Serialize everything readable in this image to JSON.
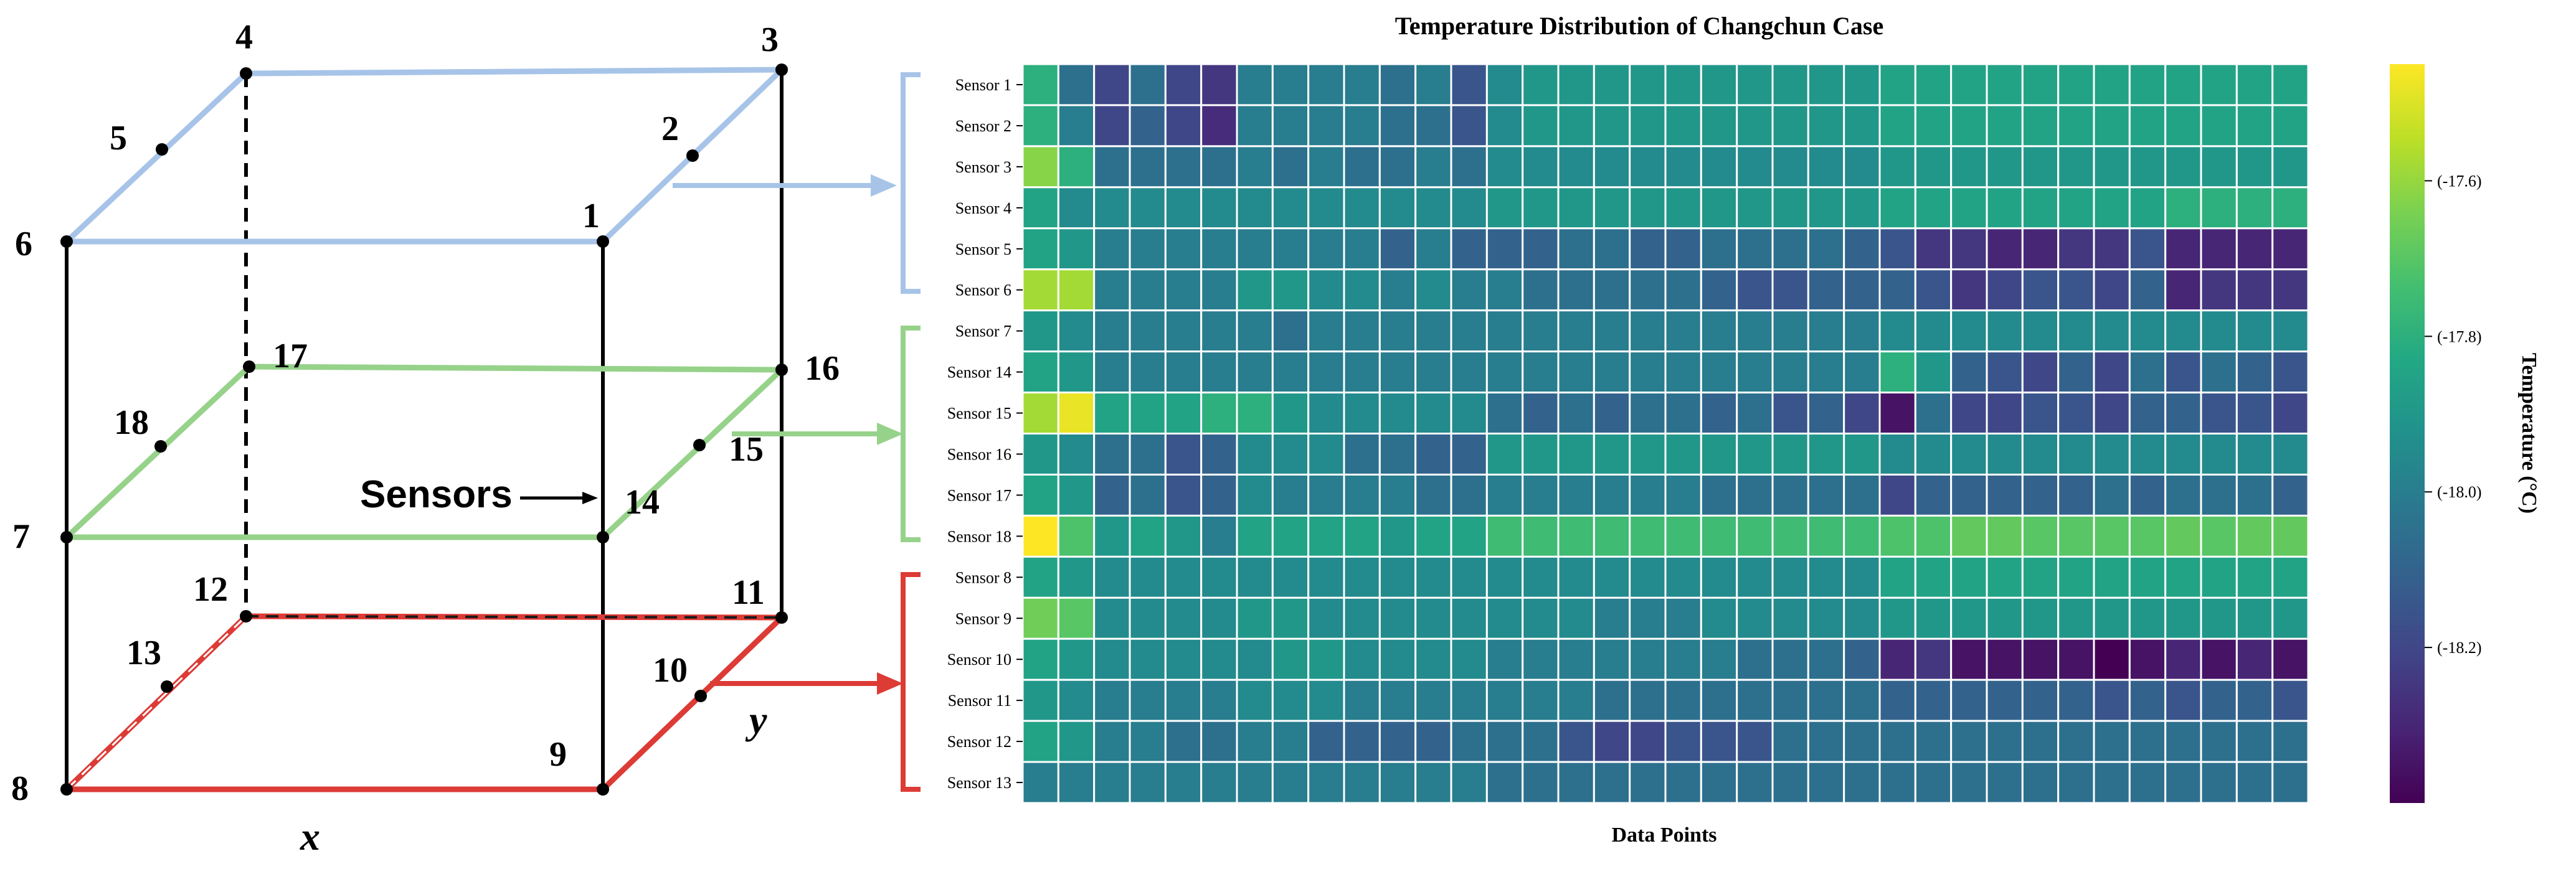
{
  "diagram": {
    "nodes": [
      "1",
      "2",
      "3",
      "4",
      "5",
      "6",
      "7",
      "8",
      "9",
      "10",
      "11",
      "12",
      "13",
      "14",
      "15",
      "16",
      "17",
      "18"
    ],
    "sensors_label": "Sensors",
    "x_axis": "x",
    "y_axis": "y",
    "colors": {
      "top": "#a7c4e8",
      "middle": "#96d28a",
      "bottom": "#dd3b36",
      "frame": "#000000"
    }
  },
  "chart_data": {
    "type": "heatmap",
    "title": "Temperature Distribution of Changchun Case",
    "xlabel": "Data Points",
    "ylabel": "",
    "colorbar_label": "Temperature (°C)",
    "colorbar_ticks": [
      {
        "value": -17.6,
        "label": "(-17.6)"
      },
      {
        "value": -17.8,
        "label": "(-17.8)"
      },
      {
        "value": -18.0,
        "label": "(-18.0)"
      },
      {
        "value": -18.2,
        "label": "(-18.2)"
      }
    ],
    "vmin": -18.4,
    "vmax": -17.45,
    "colormap": "viridis",
    "rows": [
      "Sensor 1",
      "Sensor 2",
      "Sensor 3",
      "Sensor 4",
      "Sensor 5",
      "Sensor 6",
      "Sensor 7",
      "Sensor 14",
      "Sensor 15",
      "Sensor 16",
      "Sensor 17",
      "Sensor 18",
      "Sensor 8",
      "Sensor 9",
      "Sensor 10",
      "Sensor 11",
      "Sensor 12",
      "Sensor 13"
    ],
    "groups": [
      {
        "name": "top",
        "color": "#a7c4e8",
        "rows": [
          "Sensor 1",
          "Sensor 2",
          "Sensor 3",
          "Sensor 4",
          "Sensor 5",
          "Sensor 6"
        ]
      },
      {
        "name": "middle",
        "color": "#96d28a",
        "rows": [
          "Sensor 7",
          "Sensor 14",
          "Sensor 15",
          "Sensor 16",
          "Sensor 17",
          "Sensor 18"
        ]
      },
      {
        "name": "bottom",
        "color": "#dd3b36",
        "rows": [
          "Sensor 8",
          "Sensor 9",
          "Sensor 10",
          "Sensor 11",
          "Sensor 12",
          "Sensor 13"
        ]
      }
    ],
    "n_columns": 36,
    "values": [
      [
        -17.8,
        -18.05,
        -18.2,
        -18.05,
        -18.2,
        -18.25,
        -18.0,
        -18.0,
        -18.0,
        -18.0,
        -18.05,
        -18.0,
        -18.15,
        -17.95,
        -17.9,
        -17.9,
        -17.9,
        -17.9,
        -17.9,
        -17.9,
        -17.9,
        -17.9,
        -17.9,
        -17.9,
        -17.85,
        -17.85,
        -17.85,
        -17.85,
        -17.85,
        -17.85,
        -17.85,
        -17.85,
        -17.85,
        -17.85,
        -17.85,
        -17.85
      ],
      [
        -17.8,
        -18.0,
        -18.2,
        -18.1,
        -18.2,
        -18.28,
        -18.0,
        -18.0,
        -18.0,
        -18.0,
        -18.05,
        -18.05,
        -18.15,
        -17.95,
        -17.9,
        -17.9,
        -17.9,
        -17.9,
        -17.9,
        -17.9,
        -17.9,
        -17.9,
        -17.9,
        -17.9,
        -17.85,
        -17.85,
        -17.85,
        -17.85,
        -17.85,
        -17.85,
        -17.85,
        -17.85,
        -17.85,
        -17.85,
        -17.85,
        -17.85
      ],
      [
        -17.62,
        -17.8,
        -18.05,
        -18.05,
        -18.05,
        -18.05,
        -18.0,
        -18.05,
        -18.0,
        -18.05,
        -18.05,
        -18.0,
        -18.05,
        -17.95,
        -17.95,
        -17.95,
        -17.95,
        -17.95,
        -17.95,
        -17.95,
        -17.95,
        -17.95,
        -17.95,
        -17.95,
        -17.9,
        -17.9,
        -17.9,
        -17.9,
        -17.9,
        -17.9,
        -17.9,
        -17.9,
        -17.9,
        -17.9,
        -17.9,
        -17.9
      ],
      [
        -17.85,
        -17.95,
        -17.95,
        -17.95,
        -17.95,
        -17.95,
        -17.95,
        -17.95,
        -17.95,
        -17.95,
        -17.95,
        -17.95,
        -17.95,
        -17.9,
        -17.9,
        -17.9,
        -17.9,
        -17.9,
        -17.9,
        -17.9,
        -17.9,
        -17.9,
        -17.9,
        -17.9,
        -17.85,
        -17.85,
        -17.85,
        -17.85,
        -17.85,
        -17.85,
        -17.85,
        -17.85,
        -17.8,
        -17.8,
        -17.8,
        -17.8
      ],
      [
        -17.85,
        -17.9,
        -18.0,
        -18.0,
        -18.0,
        -18.0,
        -18.0,
        -18.0,
        -18.0,
        -18.0,
        -18.1,
        -18.0,
        -18.1,
        -18.1,
        -18.1,
        -18.05,
        -18.05,
        -18.1,
        -18.1,
        -18.05,
        -18.05,
        -18.05,
        -18.05,
        -18.1,
        -18.15,
        -18.25,
        -18.25,
        -18.3,
        -18.3,
        -18.25,
        -18.25,
        -18.15,
        -18.3,
        -18.3,
        -18.3,
        -18.3
      ],
      [
        -17.58,
        -17.58,
        -18.0,
        -18.0,
        -18.0,
        -18.0,
        -17.9,
        -17.9,
        -17.95,
        -17.95,
        -18.0,
        -17.95,
        -18.0,
        -18.0,
        -18.05,
        -18.05,
        -18.05,
        -18.05,
        -18.05,
        -18.1,
        -18.15,
        -18.15,
        -18.1,
        -18.1,
        -18.1,
        -18.15,
        -18.25,
        -18.2,
        -18.15,
        -18.15,
        -18.2,
        -18.1,
        -18.3,
        -18.25,
        -18.25,
        -18.25
      ],
      [
        -17.9,
        -17.95,
        -18.0,
        -18.0,
        -18.0,
        -18.0,
        -18.0,
        -18.05,
        -18.0,
        -18.0,
        -18.0,
        -18.0,
        -18.0,
        -18.0,
        -18.0,
        -18.0,
        -18.0,
        -18.0,
        -18.0,
        -18.0,
        -18.0,
        -18.0,
        -18.0,
        -18.0,
        -17.95,
        -17.95,
        -17.95,
        -17.95,
        -17.95,
        -17.95,
        -17.95,
        -17.95,
        -17.95,
        -17.95,
        -17.95,
        -17.95
      ],
      [
        -17.85,
        -17.9,
        -18.0,
        -18.0,
        -18.0,
        -18.0,
        -18.0,
        -18.0,
        -18.0,
        -18.0,
        -18.0,
        -18.0,
        -18.0,
        -18.0,
        -18.0,
        -18.0,
        -18.0,
        -18.0,
        -18.0,
        -18.0,
        -18.0,
        -18.0,
        -18.0,
        -18.0,
        -17.8,
        -17.9,
        -18.1,
        -18.15,
        -18.2,
        -18.1,
        -18.2,
        -18.05,
        -18.15,
        -18.05,
        -18.1,
        -18.15
      ],
      [
        -17.58,
        -17.48,
        -17.85,
        -17.85,
        -17.85,
        -17.8,
        -17.8,
        -17.9,
        -17.95,
        -17.95,
        -17.95,
        -17.95,
        -17.95,
        -18.05,
        -18.1,
        -18.05,
        -18.1,
        -18.05,
        -18.05,
        -18.1,
        -18.05,
        -18.15,
        -18.1,
        -18.2,
        -18.35,
        -18.05,
        -18.2,
        -18.2,
        -18.15,
        -18.15,
        -18.2,
        -18.1,
        -18.1,
        -18.15,
        -18.15,
        -18.2
      ],
      [
        -17.9,
        -17.95,
        -18.05,
        -18.05,
        -18.15,
        -18.1,
        -17.95,
        -17.95,
        -17.95,
        -18.05,
        -18.05,
        -18.1,
        -18.1,
        -17.9,
        -17.9,
        -17.9,
        -17.9,
        -17.9,
        -17.9,
        -17.9,
        -17.9,
        -17.9,
        -17.9,
        -17.9,
        -17.95,
        -17.95,
        -17.95,
        -17.95,
        -17.95,
        -17.95,
        -17.95,
        -17.95,
        -17.95,
        -17.95,
        -17.95,
        -17.95
      ],
      [
        -17.85,
        -17.9,
        -18.1,
        -18.05,
        -18.15,
        -18.1,
        -17.95,
        -18.0,
        -18.0,
        -18.0,
        -18.0,
        -18.05,
        -18.05,
        -18.0,
        -18.0,
        -18.0,
        -18.0,
        -18.0,
        -18.0,
        -18.05,
        -18.05,
        -18.05,
        -18.05,
        -18.05,
        -18.2,
        -18.1,
        -18.1,
        -18.1,
        -18.1,
        -18.1,
        -18.05,
        -18.1,
        -18.05,
        -18.05,
        -18.05,
        -18.1
      ],
      [
        -17.45,
        -17.72,
        -17.9,
        -17.85,
        -17.9,
        -18.0,
        -17.85,
        -17.85,
        -17.85,
        -17.85,
        -17.9,
        -17.85,
        -17.85,
        -17.75,
        -17.75,
        -17.75,
        -17.75,
        -17.75,
        -17.75,
        -17.75,
        -17.75,
        -17.75,
        -17.75,
        -17.75,
        -17.72,
        -17.72,
        -17.68,
        -17.68,
        -17.7,
        -17.7,
        -17.7,
        -17.7,
        -17.68,
        -17.7,
        -17.68,
        -17.68
      ],
      [
        -17.85,
        -17.9,
        -17.95,
        -17.95,
        -17.95,
        -17.95,
        -17.95,
        -17.95,
        -17.95,
        -17.95,
        -17.95,
        -17.95,
        -17.95,
        -17.95,
        -17.95,
        -17.95,
        -17.95,
        -17.95,
        -17.95,
        -17.95,
        -17.95,
        -17.95,
        -17.95,
        -17.95,
        -17.85,
        -17.85,
        -17.85,
        -17.85,
        -17.85,
        -17.85,
        -17.85,
        -17.85,
        -17.85,
        -17.85,
        -17.85,
        -17.85
      ],
      [
        -17.66,
        -17.7,
        -17.95,
        -17.95,
        -17.95,
        -17.95,
        -17.9,
        -17.9,
        -17.95,
        -17.95,
        -17.95,
        -17.95,
        -17.95,
        -17.95,
        -17.95,
        -17.95,
        -18.0,
        -18.0,
        -18.0,
        -17.95,
        -17.95,
        -17.95,
        -17.95,
        -17.95,
        -17.9,
        -17.9,
        -17.9,
        -17.9,
        -17.9,
        -17.9,
        -17.9,
        -17.9,
        -17.9,
        -17.9,
        -17.9,
        -17.9
      ],
      [
        -17.85,
        -17.9,
        -17.95,
        -17.95,
        -17.95,
        -17.95,
        -17.95,
        -17.9,
        -17.9,
        -17.95,
        -17.95,
        -17.95,
        -17.95,
        -18.0,
        -18.0,
        -18.0,
        -18.0,
        -18.0,
        -18.0,
        -18.0,
        -18.05,
        -18.05,
        -18.05,
        -18.1,
        -18.3,
        -18.25,
        -18.35,
        -18.35,
        -18.35,
        -18.35,
        -18.4,
        -18.35,
        -18.3,
        -18.35,
        -18.3,
        -18.35
      ],
      [
        -17.9,
        -17.95,
        -18.0,
        -18.0,
        -18.0,
        -18.0,
        -17.95,
        -17.95,
        -17.95,
        -18.0,
        -18.0,
        -18.0,
        -18.0,
        -18.0,
        -18.0,
        -18.0,
        -18.05,
        -18.05,
        -18.05,
        -18.05,
        -18.05,
        -18.05,
        -18.05,
        -18.05,
        -18.1,
        -18.1,
        -18.1,
        -18.1,
        -18.1,
        -18.1,
        -18.15,
        -18.1,
        -18.15,
        -18.1,
        -18.1,
        -18.15
      ],
      [
        -17.85,
        -17.9,
        -18.0,
        -18.0,
        -18.05,
        -18.05,
        -18.0,
        -18.0,
        -18.1,
        -18.1,
        -18.1,
        -18.1,
        -18.05,
        -18.05,
        -18.05,
        -18.15,
        -18.2,
        -18.2,
        -18.15,
        -18.15,
        -18.15,
        -18.05,
        -18.05,
        -18.05,
        -18.05,
        -18.05,
        -18.05,
        -18.05,
        -18.05,
        -18.05,
        -18.05,
        -18.05,
        -18.05,
        -18.05,
        -18.05,
        -18.05
      ],
      [
        -18.0,
        -18.0,
        -18.0,
        -18.0,
        -18.0,
        -18.0,
        -18.0,
        -18.0,
        -18.0,
        -18.0,
        -18.0,
        -18.0,
        -18.0,
        -18.05,
        -18.05,
        -18.05,
        -18.05,
        -18.05,
        -18.05,
        -18.05,
        -18.05,
        -18.05,
        -18.05,
        -18.05,
        -18.05,
        -18.05,
        -18.05,
        -18.05,
        -18.05,
        -18.05,
        -18.05,
        -18.05,
        -18.05,
        -18.05,
        -18.05,
        -18.05
      ]
    ]
  }
}
